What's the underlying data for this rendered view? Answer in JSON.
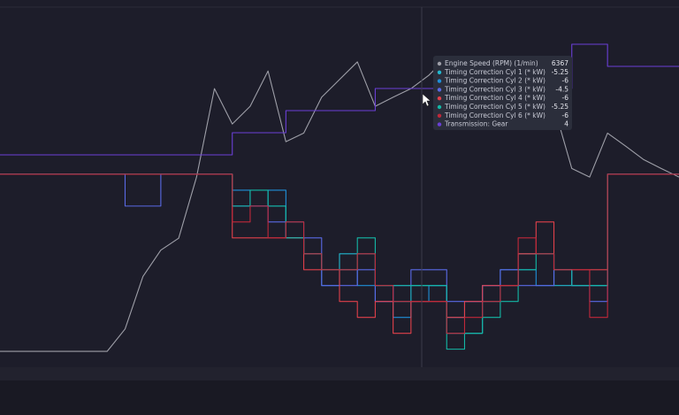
{
  "chart_data": {
    "type": "line",
    "series": [
      {
        "name": "Engine Speed (RPM) (1/min)",
        "color": "#9e9fa8",
        "step": false,
        "ylim": [
          500,
          8000
        ],
        "values": [
          833,
          833,
          833,
          833,
          833,
          833,
          833,
          1300,
          2400,
          2950,
          3200,
          4480,
          6330,
          5590,
          5960,
          6700,
          5220,
          5400,
          6150,
          6520,
          6890,
          5960,
          6150,
          6330,
          6610,
          6980,
          6890,
          6900,
          6900,
          6900,
          6890,
          5960,
          4660,
          4480,
          5400,
          5130,
          4850,
          4660,
          4480
        ]
      },
      {
        "name": "Timing Correction Cyl 1 (* kW)",
        "color": "#22b8cf",
        "step": true,
        "ylim": [
          -9.1,
          7.8
        ],
        "values": [
          0,
          0,
          0,
          0,
          0,
          0,
          0,
          0,
          0,
          0,
          0,
          0,
          0,
          -1.5,
          -1.5,
          -1.5,
          -3,
          -3.75,
          -4.5,
          -3.75,
          -3.75,
          -5.25,
          -6,
          -5.25,
          -5.25,
          -7.5,
          -7.5,
          -6,
          -5.25,
          -3.75,
          -3.75,
          -5.25,
          -5.25,
          -5.25,
          0,
          0,
          0,
          0,
          0
        ]
      },
      {
        "name": "Timing Correction Cyl 2 (* kW)",
        "color": "#1f8fd8",
        "step": true,
        "ylim": [
          -9.1,
          7.8
        ],
        "values": [
          0,
          0,
          0,
          0,
          0,
          0,
          0,
          0,
          0,
          0,
          0,
          0,
          0,
          -0.75,
          -1.5,
          -0.75,
          -2.25,
          -3.75,
          -5.25,
          -4.5,
          -5.25,
          -6,
          -6.75,
          -6,
          -5.25,
          -6.75,
          -6,
          -5.25,
          -4.5,
          -4.5,
          -5.25,
          -4.5,
          -5.25,
          -5.25,
          0,
          0,
          0,
          0,
          0
        ]
      },
      {
        "name": "Timing Correction Cyl 3 (* kW)",
        "color": "#5a6ae6",
        "step": true,
        "ylim": [
          -9.1,
          7.8
        ],
        "values": [
          0,
          0,
          0,
          0,
          0,
          0,
          0,
          -1.5,
          -1.5,
          0,
          0,
          0,
          0,
          -1.5,
          -1.5,
          -2.25,
          -3,
          -3,
          -5.25,
          -5.25,
          -4.5,
          -6,
          -5.25,
          -4.5,
          -4.5,
          -6,
          -6,
          -5.25,
          -4.5,
          -5.25,
          -5.25,
          -4.5,
          -5.25,
          -6,
          0,
          0,
          0,
          0,
          0
        ]
      },
      {
        "name": "Timing Correction Cyl 4 (* kW)",
        "color": "#e0404a",
        "step": true,
        "ylim": [
          -9.1,
          7.8
        ],
        "values": [
          0,
          0,
          0,
          0,
          0,
          0,
          0,
          0,
          0,
          0,
          0,
          0,
          0,
          -3,
          -3,
          -3,
          -3,
          -4.5,
          -4.5,
          -6,
          -6.75,
          -6,
          -7.5,
          -6,
          -6,
          -6.75,
          -6,
          -5.25,
          -5.25,
          -3.75,
          -2.25,
          -4.5,
          -4.5,
          -4.5,
          0,
          0,
          0,
          0,
          0
        ]
      },
      {
        "name": "Timing Correction Cyl 5 (* kW)",
        "color": "#14b8a6",
        "step": true,
        "ylim": [
          -9.1,
          7.8
        ],
        "values": [
          0,
          0,
          0,
          0,
          0,
          0,
          0,
          0,
          0,
          0,
          0,
          0,
          0,
          -1.5,
          -0.75,
          -1.5,
          -3,
          -3.75,
          -4.5,
          -4.5,
          -3,
          -5.25,
          -5.25,
          -5.25,
          -5.25,
          -8.25,
          -7.5,
          -6.75,
          -6,
          -4.5,
          -3.75,
          -4.5,
          -5.25,
          -5.25,
          0,
          0,
          0,
          0,
          0
        ]
      },
      {
        "name": "Timing Correction Cyl 6 (* kW)",
        "color": "#c0283a",
        "step": true,
        "ylim": [
          -9.1,
          7.8
        ],
        "values": [
          0,
          0,
          0,
          0,
          0,
          0,
          0,
          0,
          0,
          0,
          0,
          0,
          0,
          -2.25,
          -1.5,
          -3,
          -2.25,
          -3.75,
          -4.5,
          -4.5,
          -3.75,
          -5.25,
          -6,
          -6,
          -6,
          -7.5,
          -6.75,
          -6,
          -5.25,
          -3,
          -3.75,
          -4.5,
          -4.5,
          -6.75,
          0,
          0,
          0,
          0,
          0
        ]
      },
      {
        "name": "Transmission: Gear",
        "color": "#6a3fd6",
        "step": true,
        "ylim": [
          -8.6,
          7.6
        ],
        "values": [
          1,
          1,
          1,
          1,
          1,
          1,
          1,
          1,
          1,
          1,
          1,
          1,
          1,
          2,
          2,
          2,
          3,
          3,
          3,
          3,
          3,
          4,
          4,
          4,
          4,
          4,
          4,
          4,
          4,
          4,
          4,
          4,
          6,
          6,
          5,
          5,
          5,
          5,
          5
        ]
      }
    ],
    "tooltip": {
      "values": [
        6367,
        -5.25,
        -6,
        -4.5,
        -6,
        -5.25,
        -6,
        4
      ]
    }
  }
}
